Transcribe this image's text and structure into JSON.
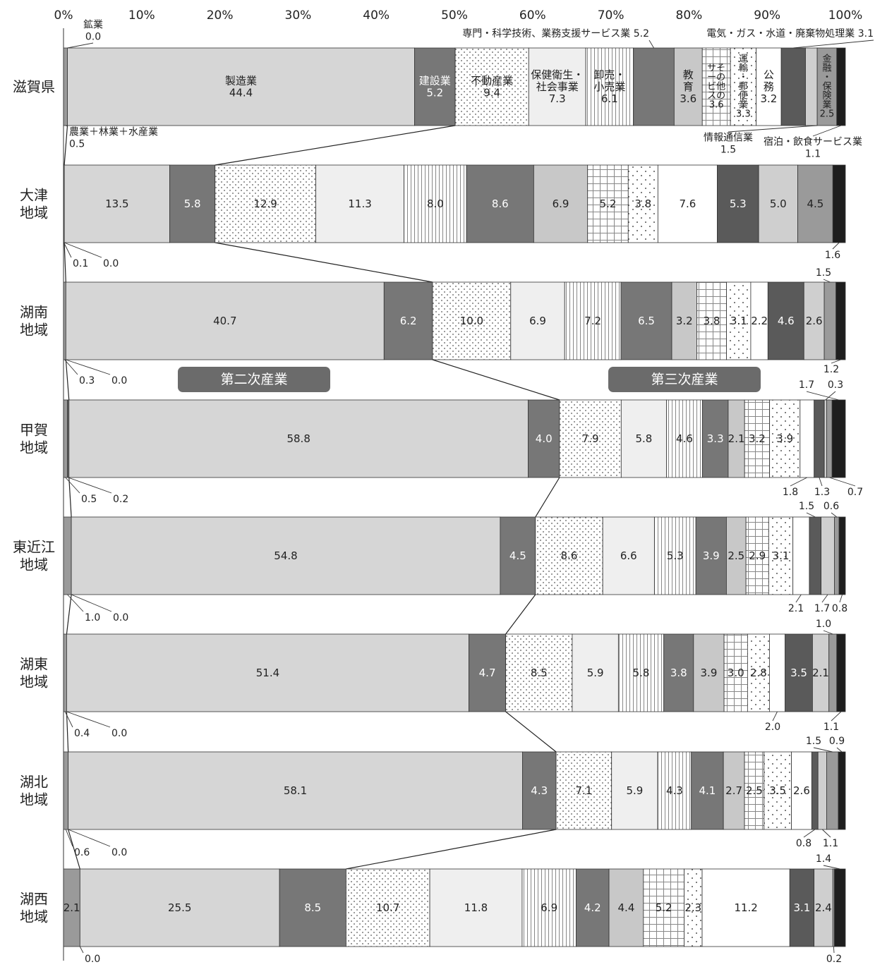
{
  "chart_data": {
    "type": "bar",
    "orientation": "horizontal",
    "stacked": "percent",
    "title": "",
    "xlabel": "",
    "ylabel": "",
    "xlim": [
      0,
      100
    ],
    "x_ticks": [
      "0%",
      "10%",
      "20%",
      "30%",
      "40%",
      "50%",
      "60%",
      "70%",
      "80%",
      "90%",
      "100%"
    ],
    "categories": [
      "滋賀県",
      "大津\n地域",
      "湖南\n地域",
      "甲賀\n地域",
      "東近江\n地域",
      "湖東\n地域",
      "湖北\n地域",
      "湖西\n地域"
    ],
    "series": [
      {
        "name": "農業＋林業＋水産業",
        "values": [
          0.5,
          0.1,
          0.3,
          0.5,
          1.0,
          0.4,
          0.6,
          2.1
        ]
      },
      {
        "name": "鉱業",
        "values": [
          0.0,
          0.0,
          0.0,
          0.2,
          0.0,
          0.0,
          0.0,
          0.0
        ]
      },
      {
        "name": "製造業",
        "values": [
          44.4,
          13.5,
          40.7,
          58.8,
          54.8,
          51.4,
          58.1,
          25.5
        ]
      },
      {
        "name": "建設業",
        "values": [
          5.2,
          5.8,
          6.2,
          4.0,
          4.5,
          4.7,
          4.3,
          8.5
        ]
      },
      {
        "name": "不動産業",
        "values": [
          9.4,
          12.9,
          10.0,
          7.9,
          8.6,
          8.5,
          7.1,
          10.7
        ]
      },
      {
        "name": "保健衛生・社会事業",
        "values": [
          7.3,
          11.3,
          6.9,
          5.8,
          6.6,
          5.9,
          5.9,
          11.8
        ]
      },
      {
        "name": "卸売・小売業",
        "values": [
          6.1,
          8.0,
          7.2,
          4.6,
          5.3,
          5.8,
          4.3,
          6.9
        ]
      },
      {
        "name": "専門・科学技術、業務支援サービス業",
        "values": [
          5.2,
          8.6,
          6.5,
          3.3,
          3.9,
          3.8,
          4.1,
          4.2
        ]
      },
      {
        "name": "教育",
        "values": [
          3.6,
          6.9,
          3.2,
          2.1,
          2.5,
          3.9,
          2.7,
          4.4
        ]
      },
      {
        "name": "その他のサービス",
        "values": [
          3.6,
          5.2,
          3.8,
          3.2,
          2.9,
          3.0,
          2.5,
          5.2
        ]
      },
      {
        "name": "運輸・郵便業",
        "values": [
          3.3,
          3.8,
          3.1,
          3.9,
          3.1,
          2.8,
          3.5,
          2.3
        ]
      },
      {
        "name": "公務",
        "values": [
          3.2,
          7.6,
          2.2,
          1.8,
          2.1,
          2.0,
          2.6,
          11.2
        ]
      },
      {
        "name": "電気・ガス・水道・廃棄物処理業",
        "values": [
          3.1,
          5.3,
          4.6,
          1.3,
          1.5,
          3.5,
          0.8,
          3.1
        ]
      },
      {
        "name": "情報通信業",
        "values": [
          1.5,
          5.0,
          2.6,
          0.3,
          1.7,
          2.1,
          1.1,
          2.4
        ]
      },
      {
        "name": "金融・保険業",
        "values": [
          2.5,
          4.5,
          1.5,
          0.7,
          0.6,
          1.0,
          1.5,
          0.2
        ]
      },
      {
        "name": "宿泊・飲食サービス業",
        "values": [
          1.1,
          1.6,
          1.2,
          1.7,
          0.8,
          1.1,
          0.9,
          1.4
        ]
      }
    ],
    "segment_labels": [
      [
        "",
        "",
        "製造業\n44.4",
        "建設業\n5.2",
        "不動産業\n9.4",
        "保健衛生・\n社会事業\n7.3",
        "卸売・\n小売業\n6.1",
        "",
        "教\n育\n3.6",
        "サそ\nーの\nビ他\nスの\n3.6",
        "運\n輸\n・\n郵\n便\n業\n3.3",
        "公\n務\n3.2",
        "",
        "",
        "金\n融\n・\n保\n険\n業\n2.5",
        ""
      ],
      [
        "",
        "",
        "13.5",
        "5.8",
        "12.9",
        "11.3",
        "8.0",
        "8.6",
        "6.9",
        "5.2",
        "3.8",
        "7.6",
        "5.3",
        "5.0",
        "4.5",
        ""
      ],
      [
        "",
        "",
        "40.7",
        "6.2",
        "10.0",
        "6.9",
        "7.2",
        "6.5",
        "3.2",
        "3.8",
        "3.1",
        "2.2",
        "4.6",
        "2.6",
        "",
        ""
      ],
      [
        "",
        "",
        "58.8",
        "4.0",
        "7.9",
        "5.8",
        "4.6",
        "3.3",
        "2.1",
        "3.2",
        "3.9",
        "",
        "",
        "",
        "",
        ""
      ],
      [
        "",
        "",
        "54.8",
        "4.5",
        "8.6",
        "6.6",
        "5.3",
        "3.9",
        "2.5",
        "2.9",
        "3.1",
        "",
        "",
        "",
        "",
        ""
      ],
      [
        "",
        "",
        "51.4",
        "4.7",
        "8.5",
        "5.9",
        "5.8",
        "3.8",
        "3.9",
        "3.0",
        "2.8",
        "",
        "3.5",
        "2.1",
        "",
        ""
      ],
      [
        "",
        "",
        "58.1",
        "4.3",
        "7.1",
        "5.9",
        "4.3",
        "4.1",
        "2.7",
        "2.5",
        "3.5",
        "2.6",
        "",
        "",
        "",
        ""
      ],
      [
        "2.1",
        "",
        "25.5",
        "8.5",
        "10.7",
        "11.8",
        "6.9",
        "4.2",
        "4.4",
        "5.2",
        "2.3",
        "11.2",
        "3.1",
        "2.4",
        "",
        ""
      ]
    ],
    "callout_labels": {
      "kyo_agri": "農業＋林業＋水産業\n0.5",
      "kyo_mining": "鉱業\n0.0",
      "kyo_prof": "専門・科学技術、業務支援サービス業 5.2",
      "kyo_elec": "電気・ガス・水道・廃棄物処理業 3.1",
      "kyo_info": "情報通信業\n1.5",
      "kyo_hosp": "宿泊・飲食サービス業\n1.1",
      "otsu_agri": "0.1",
      "otsu_mining": "0.0",
      "otsu_hosp": "1.6",
      "konan_agri": "0.3",
      "konan_mining": "0.0",
      "konan_fin": "1.5",
      "konan_hosp": "1.2",
      "koka_agri": "0.5",
      "koka_mining": "0.2",
      "koka_pub": "1.8",
      "koka_elec": "1.3",
      "koka_hosp_top": "1.7",
      "koka_info": "0.3",
      "koka_fin": "0.7",
      "higa_agri": "1.0",
      "higa_mining": "0.0",
      "higa_pub": "2.1",
      "higa_elec": "1.5",
      "higa_info": "1.7",
      "higa_fin": "0.6",
      "higa_hosp": "0.8",
      "koto_agri": "0.4",
      "koto_mining": "0.0",
      "koto_pub": "2.0",
      "koto_fin": "1.0",
      "koto_hosp": "1.1",
      "kohoku_agri": "0.6",
      "kohoku_mining": "0.0",
      "kohoku_elec": "0.8",
      "kohoku_info": "1.1",
      "kohoku_fin": "1.5",
      "kohoku_hosp": "0.9",
      "kosei_mining": "0.0",
      "kosei_fin": "0.2",
      "kosei_hosp": "1.4"
    },
    "group_labels": [
      "第二次産業",
      "第三次産業"
    ],
    "styles": [
      {
        "fill": "#9a9a9a",
        "pattern": "none",
        "text": "#222222"
      },
      {
        "fill": "#6e6e6e",
        "pattern": "none",
        "text": "#222222"
      },
      {
        "fill": "#d6d6d6",
        "pattern": "none",
        "text": "#222222"
      },
      {
        "fill": "#777777",
        "pattern": "none",
        "text": "#ffffff"
      },
      {
        "fill": "#ffffff",
        "pattern": "dots",
        "text": "#222222"
      },
      {
        "fill": "#efefef",
        "pattern": "none",
        "text": "#222222"
      },
      {
        "fill": "#ffffff",
        "pattern": "vlines",
        "text": "#222222"
      },
      {
        "fill": "#777777",
        "pattern": "none",
        "text": "#ffffff"
      },
      {
        "fill": "#c8c8c8",
        "pattern": "none",
        "text": "#222222"
      },
      {
        "fill": "#ffffff",
        "pattern": "grid",
        "text": "#222222"
      },
      {
        "fill": "#ffffff",
        "pattern": "sparse",
        "text": "#222222"
      },
      {
        "fill": "#ffffff",
        "pattern": "none",
        "text": "#222222"
      },
      {
        "fill": "#5a5a5a",
        "pattern": "none",
        "text": "#ffffff"
      },
      {
        "fill": "#cfcfcf",
        "pattern": "none",
        "text": "#222222"
      },
      {
        "fill": "#9a9a9a",
        "pattern": "none",
        "text": "#222222"
      },
      {
        "fill": "#1e1e1e",
        "pattern": "none",
        "text": "#ffffff"
      }
    ],
    "group_label_color": "#6b6b6b",
    "grid": false
  }
}
